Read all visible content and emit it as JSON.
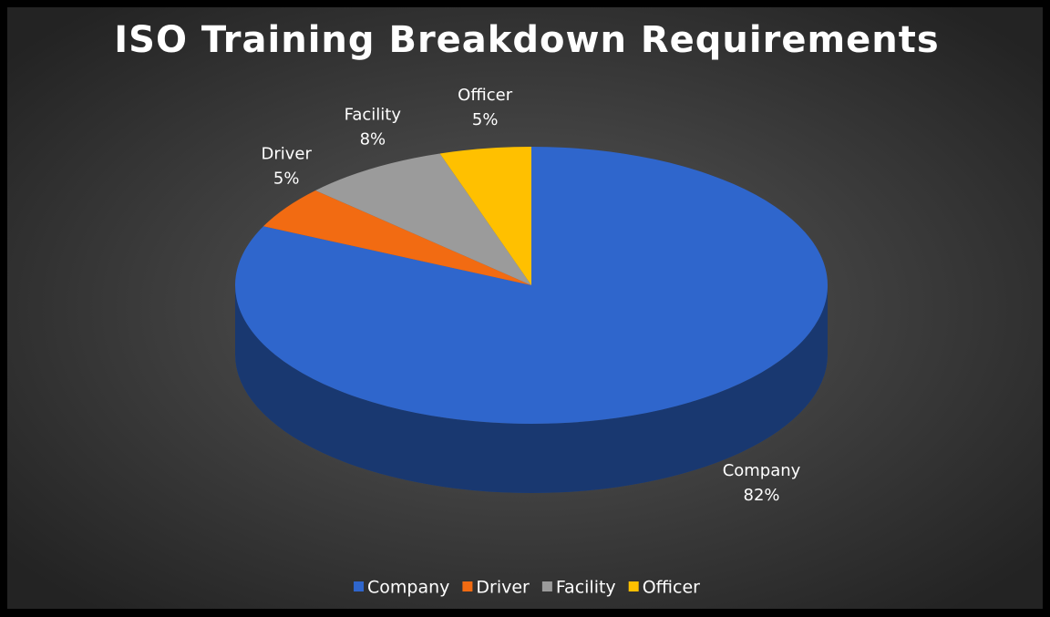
{
  "chart_data": {
    "type": "pie3d",
    "title": "ISO Training Breakdown Requirements",
    "categories": [
      "Company",
      "Driver",
      "Facility",
      "Officer"
    ],
    "values": [
      82,
      5,
      8,
      5
    ],
    "value_labels": [
      "82%",
      "5%",
      "8%",
      "5%"
    ],
    "colors": [
      "#2f66cc",
      "#f26b12",
      "#9b9b9b",
      "#ffc000"
    ],
    "legend": "bottom"
  }
}
